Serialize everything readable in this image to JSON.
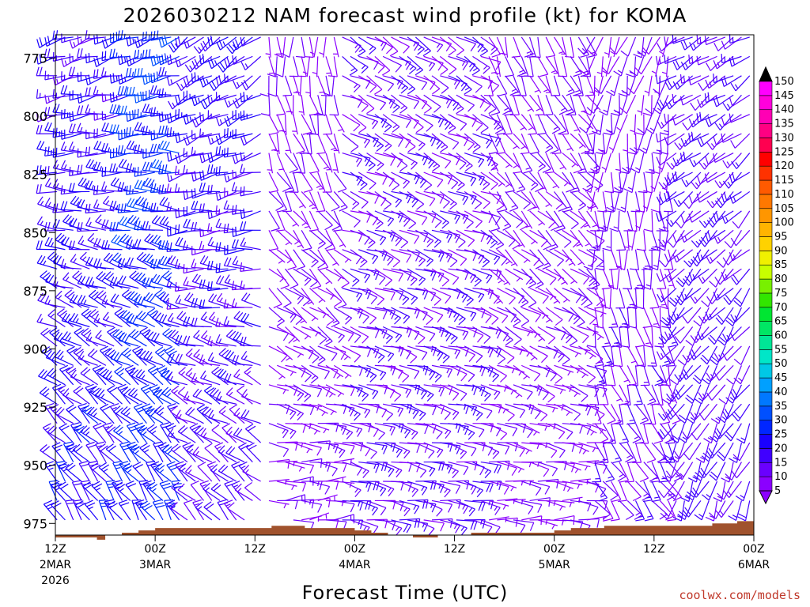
{
  "chart_data": {
    "type": "wind-barb-profile",
    "title": "2026030212 NAM forecast wind profile (kt) for KOMA",
    "xlabel": "Forecast Time (UTC)",
    "credit": "coolwx.com/models",
    "credit_color": "#c0392b",
    "terrain_color": "#a0522d",
    "ylim": [
      980,
      765
    ],
    "yticks": [
      775,
      800,
      825,
      850,
      875,
      900,
      925,
      950,
      975
    ],
    "xticks": [
      {
        "hour": 0,
        "label1": "12Z",
        "label2": "2MAR",
        "label3": "2026"
      },
      {
        "hour": 12,
        "label1": "00Z",
        "label2": "3MAR",
        "label3": ""
      },
      {
        "hour": 24,
        "label1": "12Z",
        "label2": "",
        "label3": ""
      },
      {
        "hour": 36,
        "label1": "00Z",
        "label2": "4MAR",
        "label3": ""
      },
      {
        "hour": 48,
        "label1": "12Z",
        "label2": "",
        "label3": ""
      },
      {
        "hour": 60,
        "label1": "00Z",
        "label2": "5MAR",
        "label3": ""
      },
      {
        "hour": 72,
        "label1": "12Z",
        "label2": "",
        "label3": ""
      },
      {
        "hour": 84,
        "label1": "00Z",
        "label2": "6MAR",
        "label3": ""
      }
    ],
    "xlim": [
      0,
      84
    ],
    "colorbar": {
      "levels": [
        5,
        10,
        15,
        20,
        25,
        30,
        35,
        40,
        45,
        50,
        55,
        60,
        65,
        70,
        75,
        80,
        85,
        90,
        95,
        100,
        105,
        110,
        115,
        120,
        125,
        130,
        135,
        140,
        145,
        150
      ],
      "colors": [
        "#8b00ff",
        "#6a00ff",
        "#4000ff",
        "#1a00ff",
        "#0026ff",
        "#0050ff",
        "#0078ff",
        "#00a0ff",
        "#00c8e6",
        "#00e6c8",
        "#00e696",
        "#00e664",
        "#00e632",
        "#32e600",
        "#78f000",
        "#c8ff00",
        "#f0f000",
        "#ffd200",
        "#ffb400",
        "#ff9600",
        "#ff7800",
        "#ff5a00",
        "#ff3200",
        "#ff0000",
        "#ff0050",
        "#ff0082",
        "#ff00b4",
        "#ff00dc",
        "#ff00ff",
        "#000000"
      ]
    },
    "surface_pressure": [
      [
        0,
        981
      ],
      [
        3,
        981
      ],
      [
        5,
        982
      ],
      [
        6,
        980
      ],
      [
        8,
        979
      ],
      [
        10,
        978
      ],
      [
        12,
        977
      ],
      [
        14,
        977
      ],
      [
        18,
        977
      ],
      [
        21,
        977
      ],
      [
        26,
        976
      ],
      [
        30,
        977
      ],
      [
        33,
        977
      ],
      [
        36,
        978
      ],
      [
        38,
        979
      ],
      [
        40,
        980
      ],
      [
        43,
        981
      ],
      [
        46,
        980
      ],
      [
        50,
        979
      ],
      [
        55,
        979
      ],
      [
        58,
        979
      ],
      [
        60,
        978
      ],
      [
        62,
        977
      ],
      [
        66,
        976
      ],
      [
        70,
        976
      ],
      [
        74,
        976
      ],
      [
        77,
        976
      ],
      [
        79,
        975
      ],
      [
        81,
        975
      ],
      [
        82,
        974
      ],
      [
        84,
        973
      ]
    ],
    "wind_regimes": [
      {
        "hours": [
          0,
          9
        ],
        "dir_top": 250,
        "dir_bottom": 330,
        "speed_top": 18,
        "speed_bottom": 22
      },
      {
        "hours": [
          9,
          15
        ],
        "dir_top": 250,
        "dir_bottom": 330,
        "speed_top": 27,
        "speed_bottom": 25
      },
      {
        "hours": [
          15,
          25
        ],
        "dir_top": 230,
        "dir_bottom": 320,
        "speed_top": 20,
        "speed_bottom": 15
      },
      {
        "hours": [
          25,
          34
        ],
        "dir_top": 180,
        "dir_bottom": 80,
        "speed_top": 8,
        "speed_bottom": 10
      },
      {
        "hours": [
          34,
          52
        ],
        "dir_top": 120,
        "dir_bottom": 100,
        "speed_top": 12,
        "speed_bottom": 14
      },
      {
        "hours": [
          52,
          64
        ],
        "dir_top": 160,
        "dir_bottom": 90,
        "speed_top": 10,
        "speed_bottom": 8
      },
      {
        "hours": [
          64,
          74
        ],
        "dir_top": 200,
        "dir_bottom": 140,
        "speed_top": 10,
        "speed_bottom": 12
      },
      {
        "hours": [
          74,
          84
        ],
        "dir_top": 240,
        "dir_bottom": 200,
        "speed_top": 14,
        "speed_bottom": 16
      }
    ]
  }
}
